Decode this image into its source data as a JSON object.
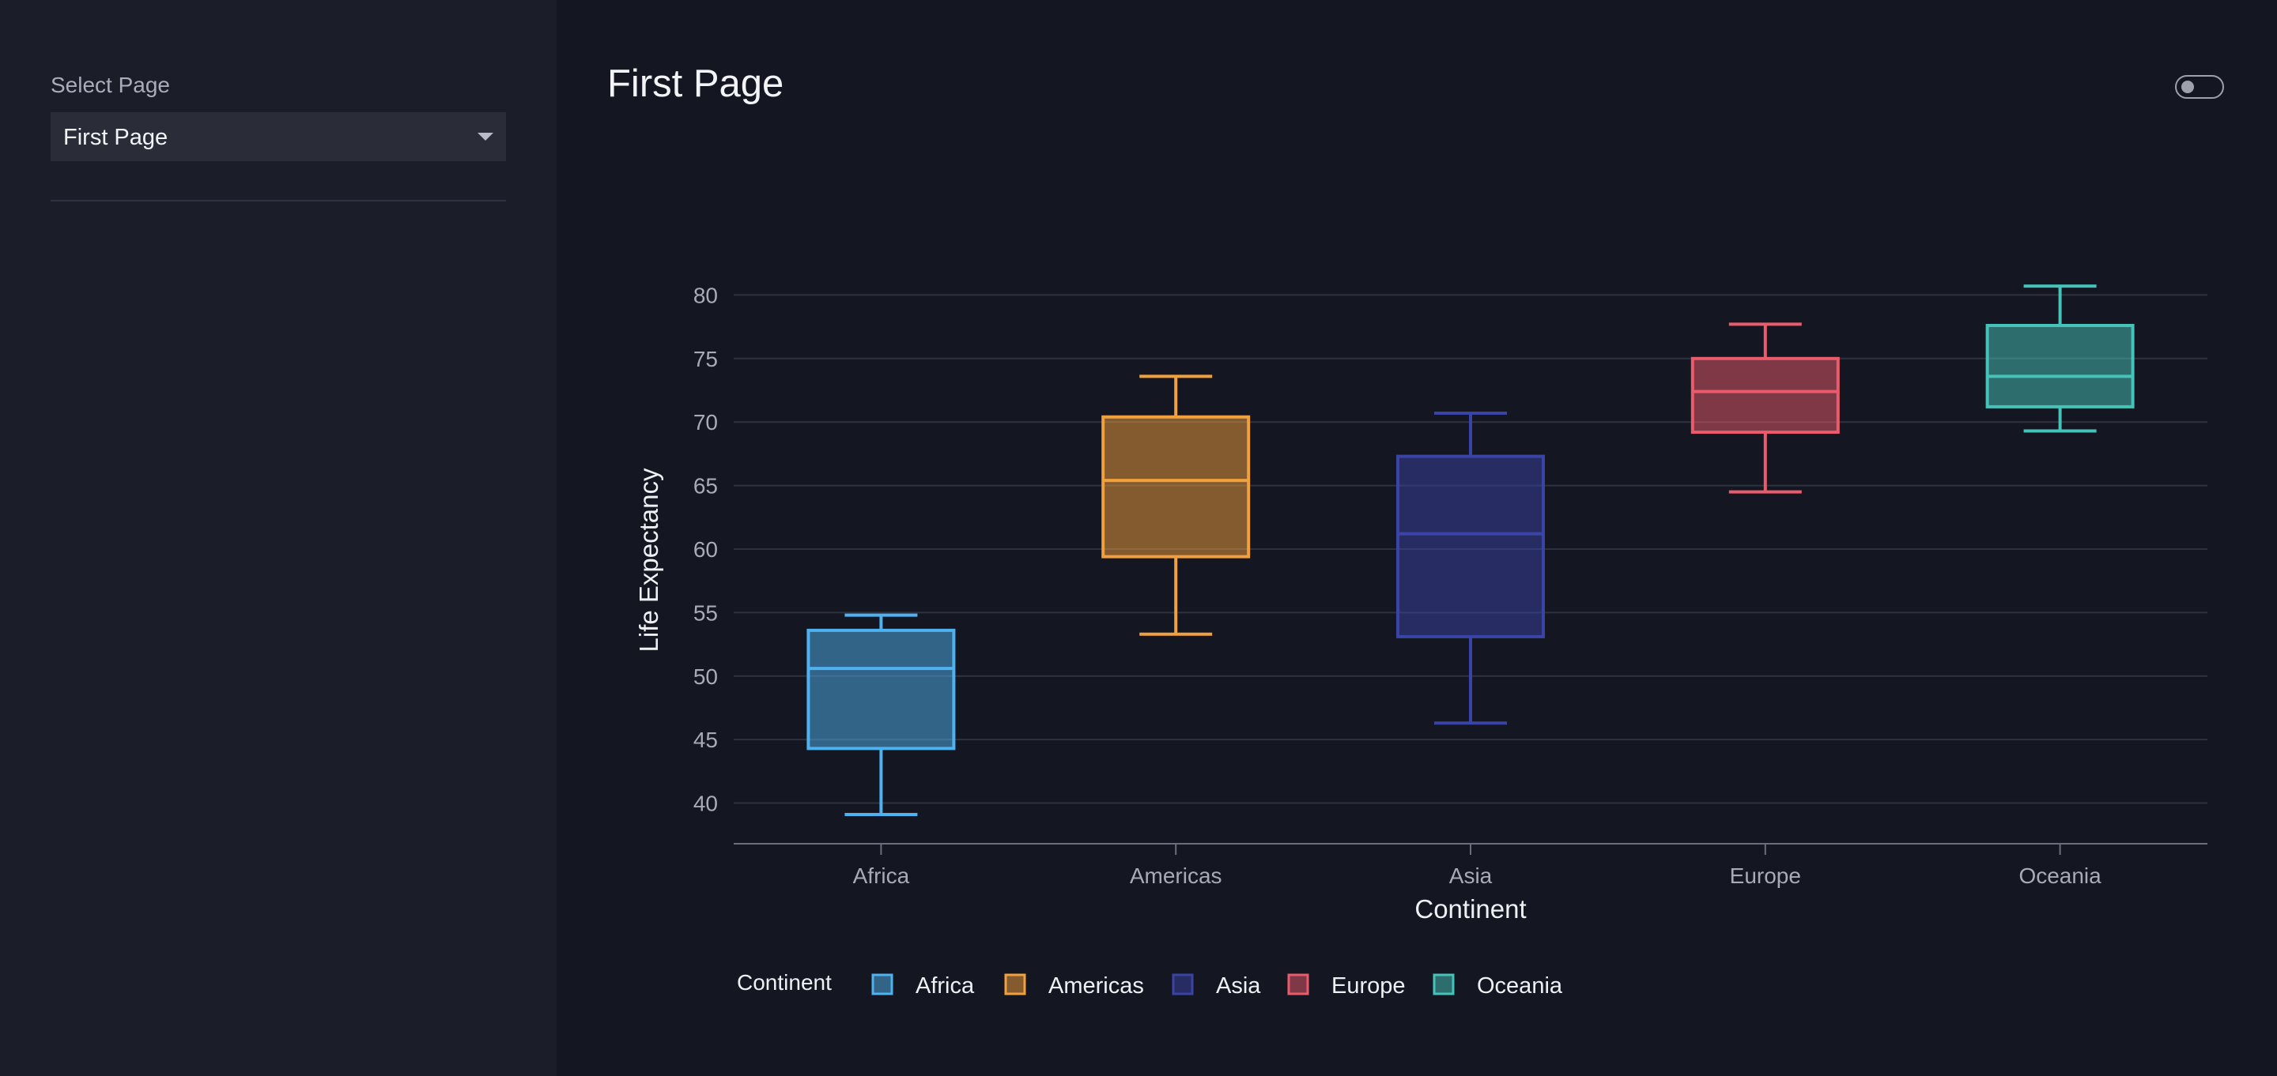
{
  "sidebar": {
    "select_label": "Select Page",
    "selected_page": "First Page"
  },
  "main": {
    "title": "First Page"
  },
  "colors": {
    "Africa": "#4fb2f0",
    "Americas": "#f2a03d",
    "Asia": "#3a44a6",
    "Europe": "#ea5b6c",
    "Oceania": "#45c3b9"
  },
  "chart_data": {
    "type": "box",
    "xlabel": "Continent",
    "ylabel": "Life Expectancy",
    "ylim": [
      36.8,
      82.7
    ],
    "yticks": [
      40,
      45,
      50,
      55,
      60,
      65,
      70,
      75,
      80
    ],
    "grid": true,
    "legend": {
      "title": "Continent",
      "placement": "bottom-left"
    },
    "categories": [
      "Africa",
      "Americas",
      "Asia",
      "Europe",
      "Oceania"
    ],
    "series": [
      {
        "name": "Africa",
        "min": 39.1,
        "q1": 44.3,
        "median": 50.6,
        "q3": 53.6,
        "max": 54.8
      },
      {
        "name": "Americas",
        "min": 53.3,
        "q1": 59.4,
        "median": 65.4,
        "q3": 70.4,
        "max": 73.6
      },
      {
        "name": "Asia",
        "min": 46.3,
        "q1": 53.1,
        "median": 61.2,
        "q3": 67.3,
        "max": 70.7
      },
      {
        "name": "Europe",
        "min": 64.5,
        "q1": 69.2,
        "median": 72.4,
        "q3": 75.0,
        "max": 77.7
      },
      {
        "name": "Oceania",
        "min": 69.3,
        "q1": 71.2,
        "median": 73.6,
        "q3": 77.6,
        "max": 80.7
      }
    ]
  }
}
